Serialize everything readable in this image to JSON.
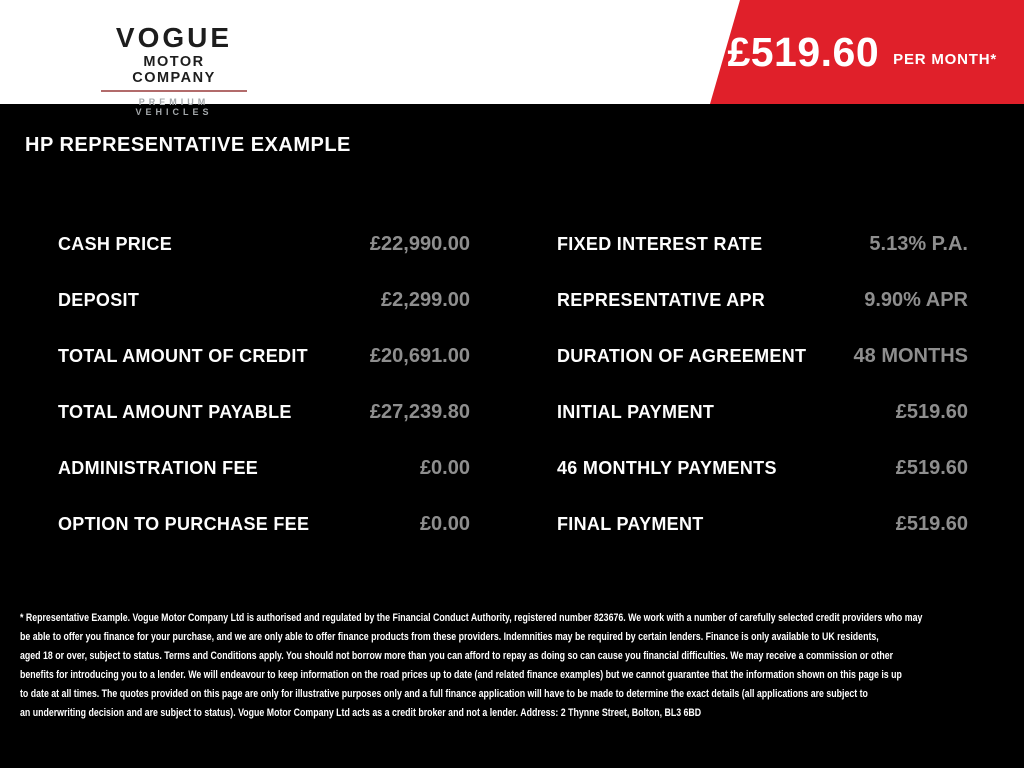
{
  "logo": {
    "name": "VOGUE",
    "subtitle": "MOTOR COMPANY",
    "tagline": "PREMIUM VEHICLES"
  },
  "banner": {
    "price": "£519.60",
    "per_label": "PER MONTH*",
    "background_color": "#e0202a"
  },
  "main": {
    "title": "HP REPRESENTATIVE EXAMPLE"
  },
  "finance": {
    "left": [
      {
        "label": "CASH PRICE",
        "value": "£22,990.00"
      },
      {
        "label": "DEPOSIT",
        "value": "£2,299.00"
      },
      {
        "label": "TOTAL AMOUNT OF CREDIT",
        "value": "£20,691.00"
      },
      {
        "label": "TOTAL AMOUNT PAYABLE",
        "value": "£27,239.80"
      },
      {
        "label": "ADMINISTRATION FEE",
        "value": "£0.00"
      },
      {
        "label": "OPTION TO PURCHASE FEE",
        "value": "£0.00"
      }
    ],
    "right": [
      {
        "label": "FIXED INTEREST RATE",
        "value": "5.13% P.A."
      },
      {
        "label": "REPRESENTATIVE APR",
        "value": "9.90% APR"
      },
      {
        "label": "DURATION OF AGREEMENT",
        "value": "48 MONTHS"
      },
      {
        "label": "INITIAL PAYMENT",
        "value": "£519.60"
      },
      {
        "label": "46 MONTHLY PAYMENTS",
        "value": "£519.60"
      },
      {
        "label": "FINAL PAYMENT",
        "value": "£519.60"
      }
    ]
  },
  "disclaimer": {
    "lines": [
      "* Representative Example. Vogue Motor Company Ltd is authorised and regulated by the Financial Conduct Authority, registered number 823676. We work with a number of carefully selected credit providers who may",
      "be able to offer you finance for your purchase, and we are only able to offer finance products from these providers. Indemnities may be required by certain lenders. Finance is only available to UK residents,",
      "aged 18 or over, subject to status. Terms and Conditions apply. You should not borrow more than you can afford to repay as doing so can cause you financial difficulties. We may receive a commission or other",
      "benefits for introducing you to a lender. We will endeavour to keep information on the road prices up to date (and related finance examples) but we cannot guarantee that the information shown on this page is up",
      "to date at all times. The quotes provided on this page are only for illustrative purposes only and a full finance application will have to be made to determine the exact details (all applications are subject to",
      "an underwriting decision and are subject to status). Vogue Motor Company Ltd acts as a credit broker and not a lender. Address: 2 Thynne Street, Bolton, BL3 6BD"
    ]
  },
  "colors": {
    "accent_red": "#e0202a",
    "value_gray": "#8e8e8e",
    "logo_rule_red": "#b26b6b",
    "background": "#000000",
    "header_background": "#ffffff"
  }
}
